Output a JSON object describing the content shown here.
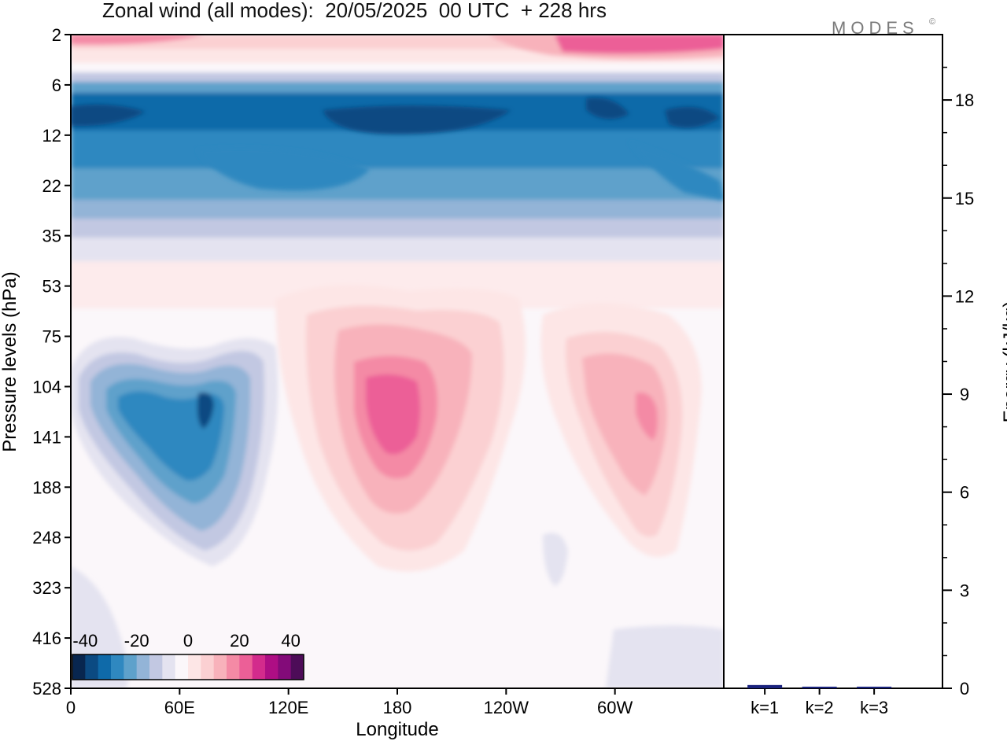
{
  "chart_data": [
    {
      "type": "heatmap",
      "title": "Zonal wind (all modes):  20/05/2025  00 UTC  + 228 hrs",
      "xlabel": "Longitude",
      "ylabel": "Pressure levels (hPa)",
      "x_ticks": [
        "0",
        "60E",
        "120E",
        "180",
        "120W",
        "60W"
      ],
      "x_tick_values": [
        0,
        60,
        120,
        180,
        240,
        300
      ],
      "xlim": [
        0,
        360
      ],
      "y_ticks": [
        "2",
        "6",
        "12",
        "22",
        "35",
        "53",
        "75",
        "104",
        "141",
        "188",
        "248",
        "323",
        "416",
        "528"
      ],
      "y_scale": "level-index (inverted, 2 hPa at top)",
      "colorbar": {
        "labels": [
          "-40",
          "-20",
          "0",
          "20",
          "40"
        ],
        "label_values": [
          -40,
          -20,
          0,
          20,
          40
        ],
        "range": [
          -45,
          45
        ],
        "step": 5,
        "placement": "bottom-left",
        "colors": [
          "#08264f",
          "#0b4a82",
          "#0f6aa9",
          "#2f88c0",
          "#5ea1cb",
          "#93b4d7",
          "#c2c8e2",
          "#e4e3f0",
          "#fbf7fa",
          "#fde6e6",
          "#fbd0d2",
          "#f8b2bb",
          "#f48aa5",
          "#ec5f97",
          "#d32b8c",
          "#ae0e84",
          "#830b79",
          "#4d0c58"
        ]
      },
      "features": [
        {
          "level": "8-14 hPa",
          "lon_range": [
            0,
            360
          ],
          "value": -30
        },
        {
          "level": "90-180 hPa",
          "lon": 65,
          "value": -27
        },
        {
          "level": "100-180 hPa",
          "lon": 185,
          "value": 27
        },
        {
          "level": "110-160 hPa",
          "lon": 310,
          "value": 22
        },
        {
          "level": "2-4 hPa",
          "lon_range": [
            270,
            360
          ],
          "value": 25
        }
      ]
    },
    {
      "type": "bar",
      "ylabel": "Energy (kJ/kg)",
      "categories": [
        "k=1",
        "k=2",
        "k=3"
      ],
      "values": [
        0.1,
        0.05,
        0.05
      ],
      "y_ticks": [
        "0",
        "3",
        "6",
        "9",
        "12",
        "15",
        "18"
      ],
      "ylim": [
        0,
        20
      ],
      "axis_side": "right",
      "bar_color": "#1a237e"
    }
  ],
  "logo": {
    "text": "MODES",
    "mark": "©"
  }
}
